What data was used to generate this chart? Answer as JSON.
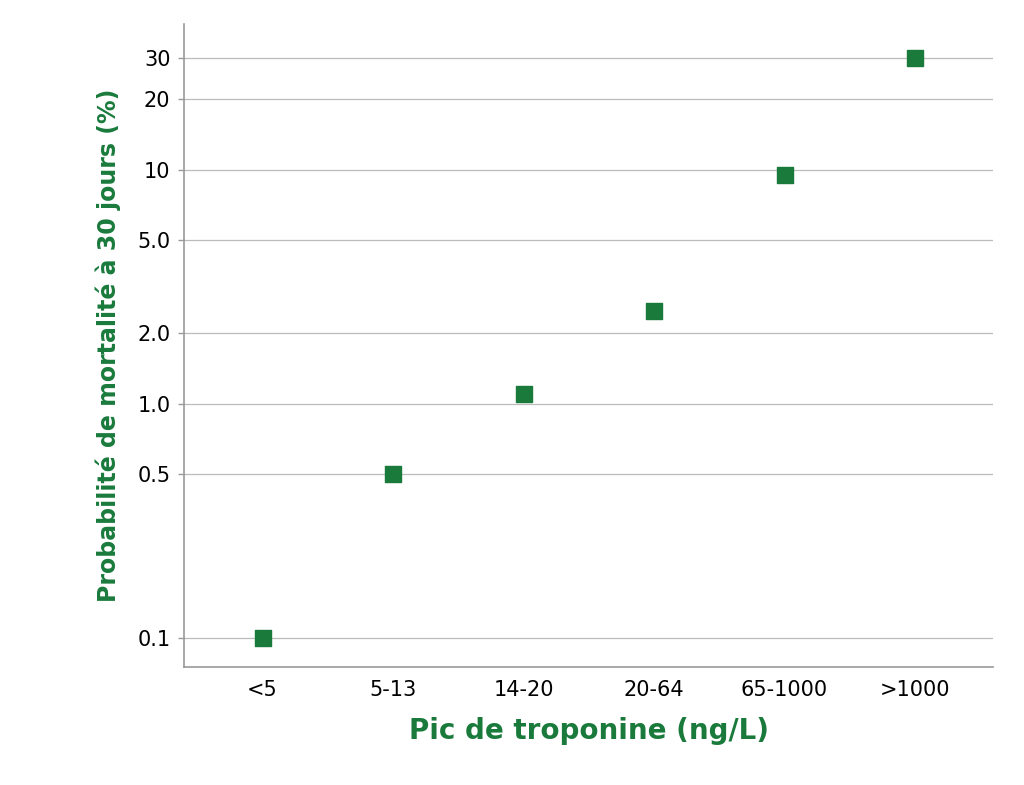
{
  "categories": [
    "<5",
    "5-13",
    "14-20",
    "20-64",
    "65-1000",
    ">1000"
  ],
  "values": [
    0.1,
    0.5,
    1.1,
    2.5,
    9.5,
    30
  ],
  "marker_color": "#1a7a3c",
  "marker_size": 130,
  "xlabel": "Pic de troponine (ng/L)",
  "ylabel": "Probabilité de mortalité à 30 jours (%)",
  "xlabel_color": "#1a7a3c",
  "ylabel_color": "#1a7a3c",
  "xlabel_fontsize": 20,
  "ylabel_fontsize": 17,
  "yticks": [
    0.1,
    0.5,
    1.0,
    2.0,
    5.0,
    10,
    20,
    30
  ],
  "ytick_labels": [
    "0.1",
    "0.5",
    "1.0",
    "2.0",
    "5.0",
    "10",
    "20",
    "30"
  ],
  "ymin": 0.075,
  "ymax": 42,
  "grid_color": "#bbbbbb",
  "background_color": "#ffffff",
  "tick_label_fontsize": 15,
  "xtick_label_fontsize": 15,
  "spine_color": "#999999"
}
